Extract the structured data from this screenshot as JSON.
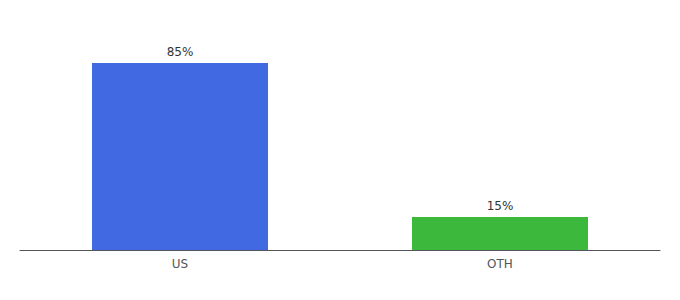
{
  "chart_data": {
    "type": "bar",
    "categories": [
      "US",
      "OTH"
    ],
    "values": [
      85,
      15
    ],
    "value_labels": [
      "85%",
      "15%"
    ],
    "colors": [
      "#4169e1",
      "#3cb83c"
    ],
    "data_labels": true,
    "ylim": [
      0,
      100
    ],
    "grid": false,
    "tick_labels": "x"
  }
}
